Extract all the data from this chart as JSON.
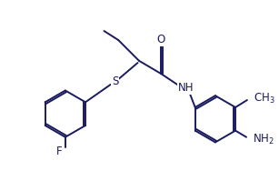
{
  "bg_color": "#ffffff",
  "line_color": "#1a1a5e",
  "text_color": "#1a1a5e",
  "bond_lw": 1.4,
  "font_size": 8.5,
  "figsize": [
    3.07,
    1.99
  ],
  "dpi": 100,
  "xlim": [
    0,
    10.5
  ],
  "ylim": [
    0,
    6.8
  ]
}
